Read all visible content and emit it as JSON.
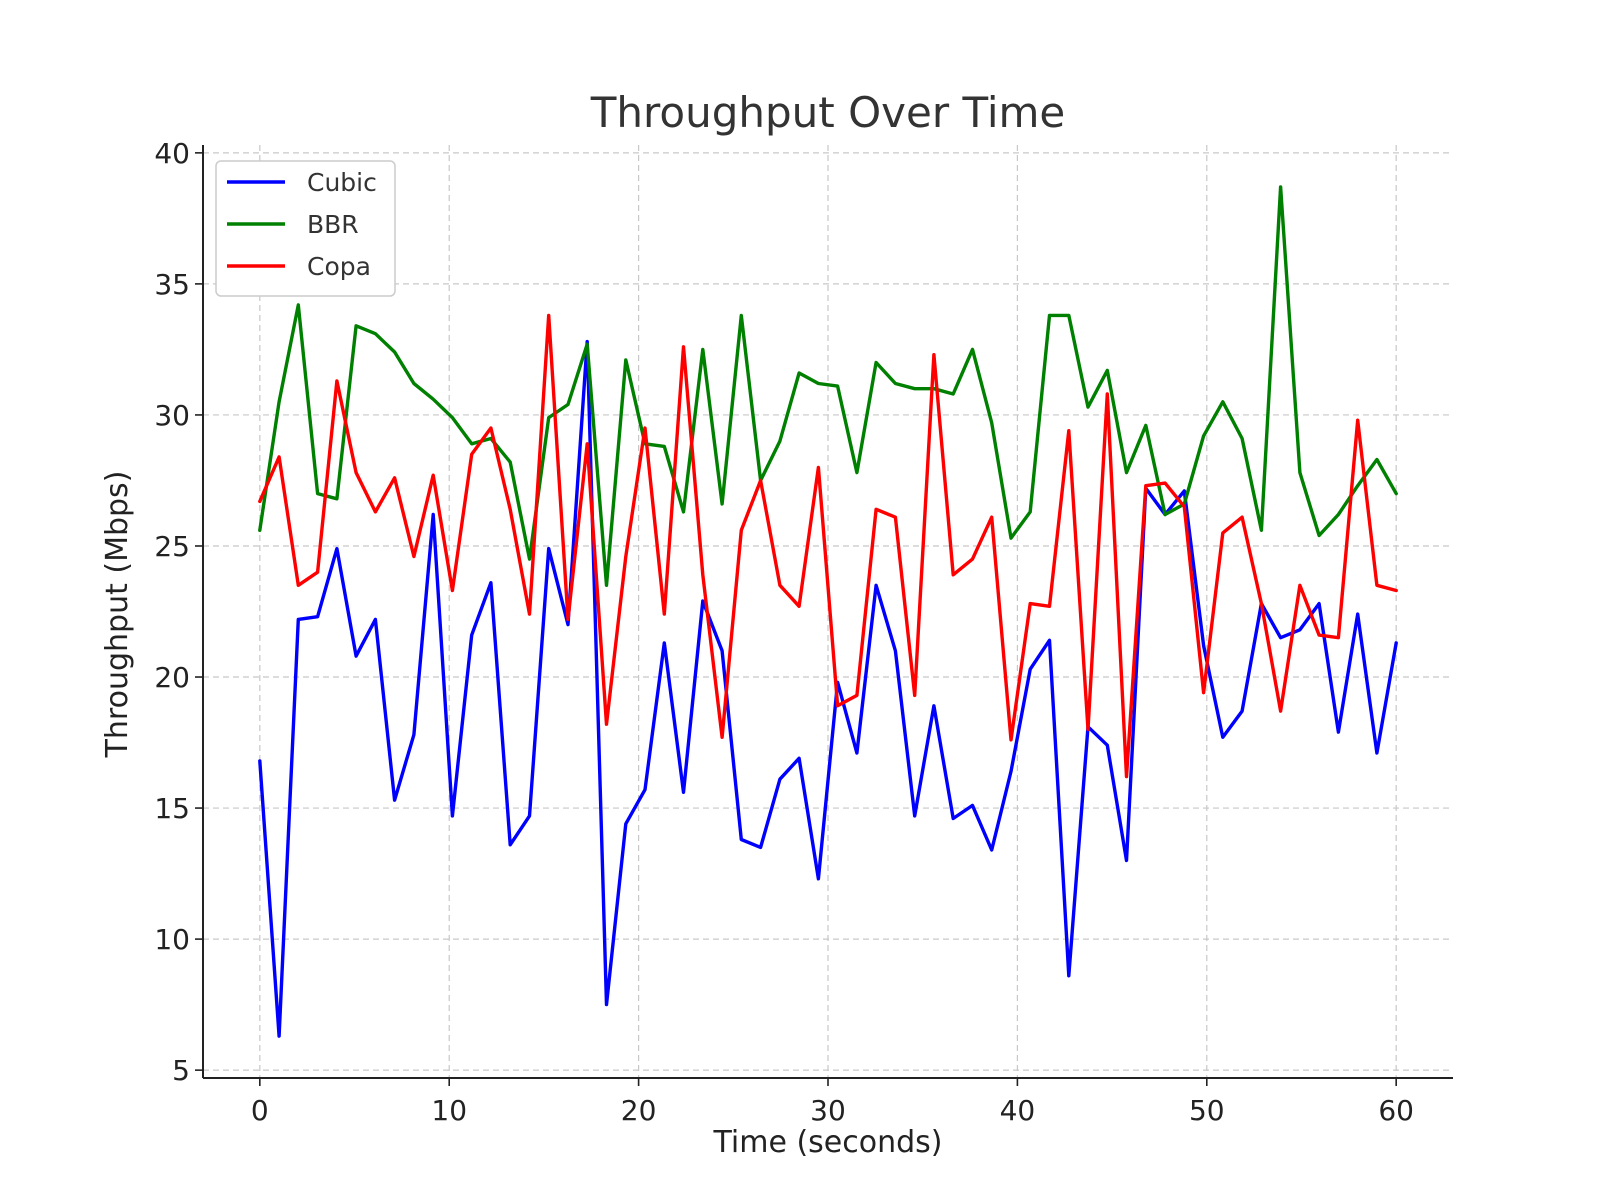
{
  "chart_data": {
    "type": "line",
    "title": "Throughput Over Time",
    "xlabel": "Time (seconds)",
    "ylabel": "Throughput (Mbps)",
    "xlim": [
      -3,
      63
    ],
    "ylim": [
      4.7,
      40.3
    ],
    "xticks": [
      0,
      10,
      20,
      30,
      40,
      50,
      60
    ],
    "yticks": [
      5,
      10,
      15,
      20,
      25,
      30,
      35,
      40
    ],
    "grid": true,
    "legend_position": "top-left",
    "x": [
      0,
      1.017,
      2.034,
      3.051,
      4.068,
      5.085,
      6.102,
      7.119,
      8.136,
      9.153,
      10.169,
      11.186,
      12.203,
      13.22,
      14.237,
      15.254,
      16.271,
      17.288,
      18.305,
      19.322,
      20.339,
      21.356,
      22.373,
      23.39,
      24.407,
      25.424,
      26.441,
      27.458,
      28.475,
      29.492,
      30.508,
      31.525,
      32.542,
      33.559,
      34.576,
      35.593,
      36.61,
      37.627,
      38.644,
      39.661,
      40.678,
      41.695,
      42.712,
      43.729,
      44.746,
      45.763,
      46.78,
      47.797,
      48.814,
      49.831,
      50.847,
      51.864,
      52.881,
      53.898,
      54.915,
      55.932,
      56.949,
      57.966,
      58.983,
      60
    ],
    "series": [
      {
        "name": "Cubic",
        "color": "#0000ff",
        "values": [
          16.8,
          6.3,
          22.2,
          22.3,
          24.9,
          20.8,
          22.2,
          15.3,
          17.8,
          26.2,
          14.7,
          21.6,
          23.6,
          13.6,
          14.7,
          24.9,
          22.0,
          32.8,
          7.5,
          14.4,
          15.7,
          21.3,
          15.6,
          22.9,
          21.0,
          13.8,
          13.5,
          16.1,
          16.9,
          12.3,
          19.8,
          17.1,
          23.5,
          21.0,
          14.7,
          18.9,
          14.6,
          15.1,
          13.4,
          16.4,
          20.3,
          21.4,
          8.6,
          18.1,
          17.4,
          13.0,
          27.2,
          26.2,
          27.1,
          21.2,
          17.7,
          18.7,
          22.8,
          21.5,
          21.8,
          22.8,
          17.9,
          22.4,
          17.1,
          21.3
        ]
      },
      {
        "name": "BBR",
        "color": "#008000",
        "values": [
          25.6,
          30.5,
          34.2,
          27.0,
          26.8,
          33.4,
          33.1,
          32.4,
          31.2,
          30.6,
          29.9,
          28.9,
          29.1,
          28.2,
          24.5,
          29.9,
          30.4,
          32.7,
          23.5,
          32.1,
          28.9,
          28.8,
          26.3,
          32.5,
          26.6,
          33.8,
          27.5,
          29.0,
          31.6,
          31.2,
          31.1,
          27.8,
          32.0,
          31.2,
          31.0,
          31.0,
          30.8,
          32.5,
          29.7,
          25.3,
          26.3,
          33.8,
          33.8,
          30.3,
          31.7,
          27.8,
          29.6,
          26.2,
          26.6,
          29.2,
          30.5,
          29.1,
          25.6,
          38.7,
          27.8,
          25.4,
          26.2,
          27.3,
          28.3,
          27.0
        ]
      },
      {
        "name": "Copa",
        "color": "#ff0000",
        "values": [
          26.7,
          28.4,
          23.5,
          24.0,
          31.3,
          27.8,
          26.3,
          27.6,
          24.6,
          27.7,
          23.3,
          28.5,
          29.5,
          26.4,
          22.4,
          33.8,
          22.2,
          28.9,
          18.2,
          24.6,
          29.5,
          22.4,
          32.6,
          23.9,
          17.7,
          25.6,
          27.5,
          23.5,
          22.7,
          28.0,
          18.9,
          19.3,
          26.4,
          26.1,
          19.3,
          32.3,
          23.9,
          24.5,
          26.1,
          17.6,
          22.8,
          22.7,
          29.4,
          18.0,
          30.8,
          16.2,
          27.3,
          27.4,
          26.5,
          19.4,
          25.5,
          26.1,
          22.8,
          18.7,
          23.5,
          21.6,
          21.5,
          29.8,
          23.5,
          23.3
        ]
      }
    ]
  }
}
